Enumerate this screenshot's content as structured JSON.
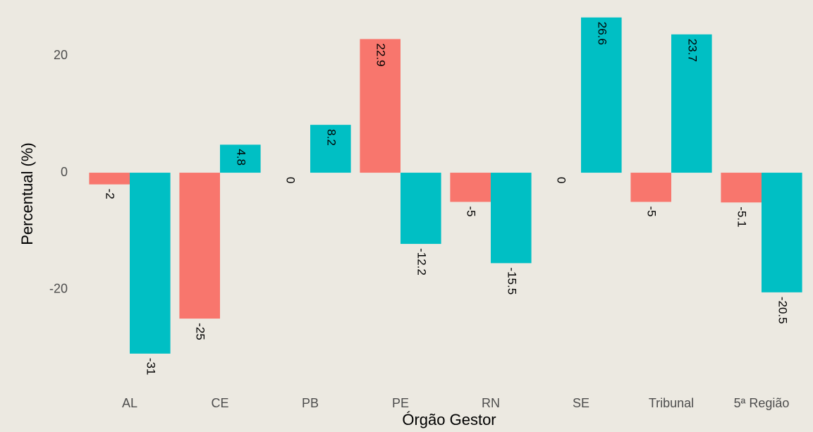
{
  "chart_data": {
    "type": "bar",
    "x_label": "Órgão Gestor",
    "y_label": "Percentual (%)",
    "categories": [
      "AL",
      "CE",
      "PB",
      "PE",
      "RN",
      "SE",
      "Tribunal",
      "5ª Região"
    ],
    "series": [
      {
        "color": "#f8766d",
        "values": [
          -2,
          -25,
          0,
          22.9,
          -5,
          0,
          -5,
          -5.1
        ]
      },
      {
        "color": "#00bfc4",
        "values": [
          -31,
          4.8,
          8.2,
          -12.2,
          -15.5,
          26.6,
          23.7,
          -20.5
        ]
      }
    ],
    "ylim": [
      -33.2,
      27.9
    ],
    "yticks": [
      -20,
      0,
      20
    ],
    "grid": false
  }
}
